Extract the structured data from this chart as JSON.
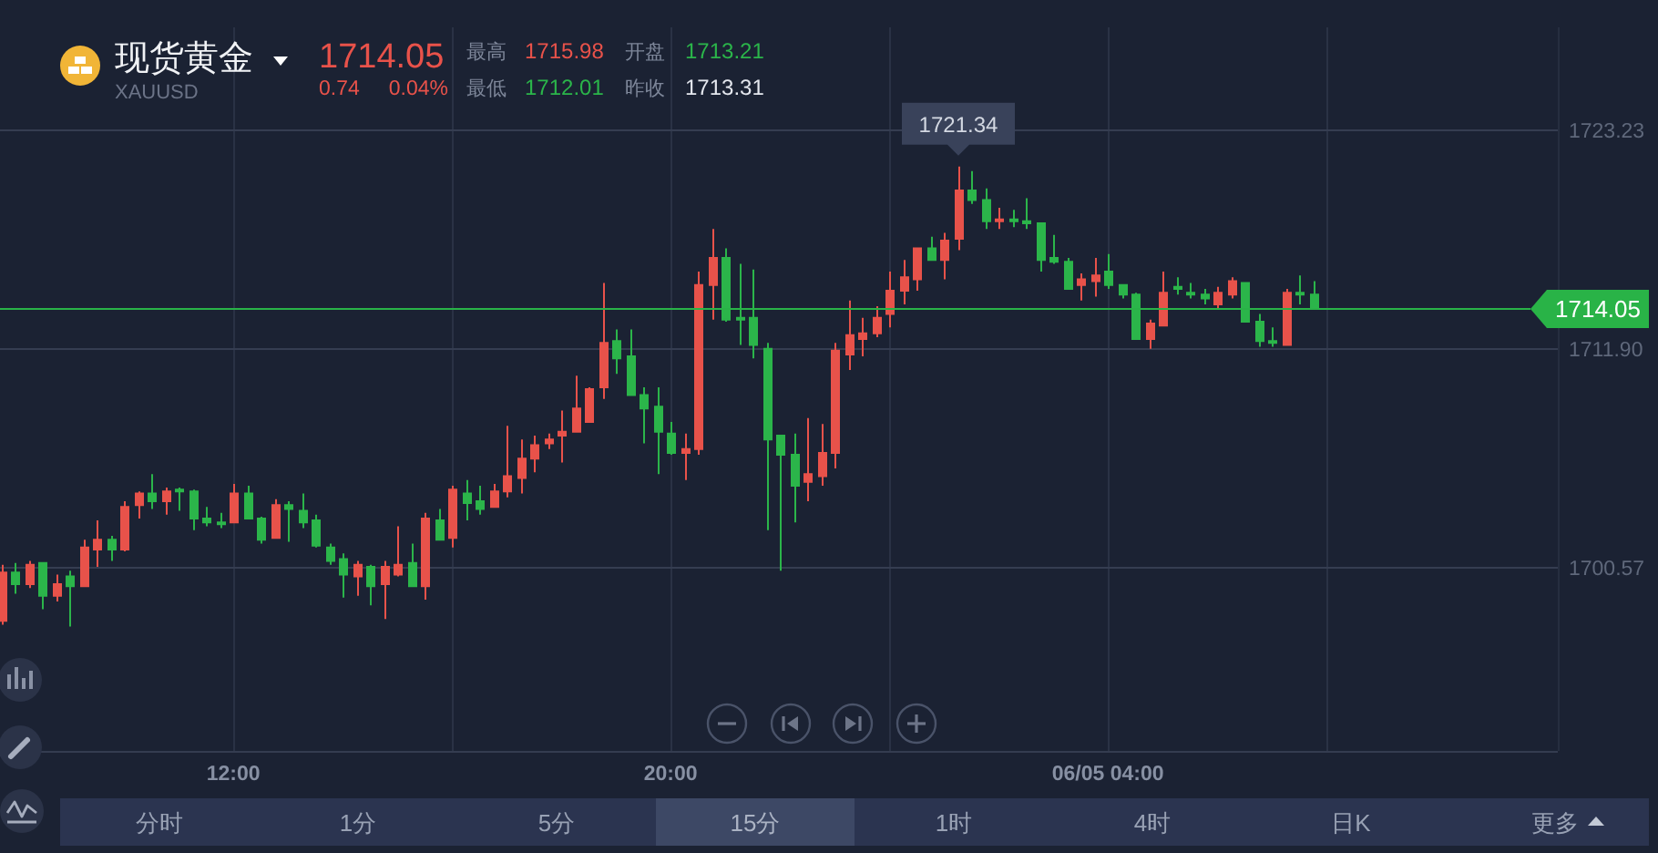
{
  "chart_data": {
    "type": "candlestick",
    "title": "现货黄金",
    "subtitle": "XAUUSD",
    "annotations": [
      "1714.05",
      "0.74",
      "0.04%",
      "最高",
      "1715.98",
      "开盘",
      "1713.21",
      "最低",
      "1712.01",
      "昨收",
      "1713.31",
      "分时",
      "1分",
      "5分",
      "15分",
      "1时",
      "4时",
      "日K",
      "更多",
      {
        "text": "1721.34",
        "x": 25.25,
        "y": 1721.34
      }
    ],
    "x": [
      7.75,
      8,
      8.25,
      8.5,
      8.75,
      9,
      9.25,
      9.5,
      9.75,
      10,
      10.25,
      10.5,
      10.75,
      11,
      11.25,
      11.5,
      11.75,
      12,
      12.25,
      12.5,
      12.75,
      13,
      13.25,
      13.5,
      13.75,
      14,
      14.25,
      14.5,
      14.75,
      15,
      15.25,
      15.5,
      15.75,
      16,
      16.25,
      16.5,
      16.75,
      17,
      17.25,
      17.5,
      17.75,
      18,
      18.25,
      18.5,
      18.75,
      19,
      19.25,
      19.5,
      19.75,
      20,
      20.25,
      20.5,
      20.75,
      21,
      21.25,
      21.5,
      21.75,
      22,
      22.25,
      22.5,
      22.75,
      23,
      23.25,
      23.5,
      23.75,
      24,
      24.25,
      24.5,
      24.75,
      25,
      25.25,
      25.5,
      25.75,
      26,
      26.25,
      26.5,
      26.75,
      27,
      27.25,
      27.5,
      27.75,
      28,
      28.25,
      28.5,
      28.75,
      29,
      29.25,
      29.5,
      29.75,
      30,
      30.25,
      30.5,
      30.75,
      31,
      31.25,
      31.5,
      31.75
    ],
    "ohlc": [
      [
        1697.8,
        1700.7,
        1697.6,
        1700.3
      ],
      [
        1700.3,
        1700.8,
        1699.2,
        1699.7
      ],
      [
        1699.7,
        1700.9,
        1699.5,
        1700.7
      ],
      [
        1700.8,
        1700.8,
        1698.4,
        1699.1
      ],
      [
        1699.1,
        1700.2,
        1698.8,
        1699.7
      ],
      [
        1700.1,
        1700.4,
        1697.5,
        1699.6
      ],
      [
        1699.6,
        1702.0,
        1699.6,
        1701.6
      ],
      [
        1701.5,
        1703.0,
        1700.6,
        1702.0
      ],
      [
        1702.0,
        1702.2,
        1700.9,
        1701.5
      ],
      [
        1701.5,
        1704.0,
        1701.4,
        1703.7
      ],
      [
        1703.8,
        1704.5,
        1703.1,
        1704.4
      ],
      [
        1704.4,
        1705.4,
        1703.6,
        1704.0
      ],
      [
        1704.0,
        1704.7,
        1703.3,
        1704.5
      ],
      [
        1704.6,
        1704.7,
        1703.5,
        1704.5
      ],
      [
        1704.5,
        1704.6,
        1702.5,
        1703.1
      ],
      [
        1703.1,
        1703.7,
        1702.7,
        1702.9
      ],
      [
        1702.9,
        1703.4,
        1702.6,
        1702.8
      ],
      [
        1702.9,
        1704.9,
        1702.9,
        1704.4
      ],
      [
        1704.4,
        1704.8,
        1703.1,
        1703.1
      ],
      [
        1703.1,
        1703.2,
        1701.8,
        1702.0
      ],
      [
        1702.1,
        1704.1,
        1702.1,
        1703.8
      ],
      [
        1703.8,
        1704.0,
        1701.9,
        1703.6
      ],
      [
        1703.5,
        1704.4,
        1702.6,
        1702.9
      ],
      [
        1703.0,
        1703.3,
        1701.6,
        1701.7
      ],
      [
        1701.6,
        1701.8,
        1700.7,
        1700.9
      ],
      [
        1701.0,
        1701.3,
        1699.0,
        1700.2
      ],
      [
        1700.1,
        1700.9,
        1699.1,
        1700.7
      ],
      [
        1700.6,
        1700.7,
        1698.6,
        1699.6
      ],
      [
        1699.7,
        1700.9,
        1697.9,
        1700.6
      ],
      [
        1700.2,
        1702.7,
        1700.1,
        1700.7
      ],
      [
        1700.8,
        1701.8,
        1699.6,
        1699.6
      ],
      [
        1699.6,
        1703.4,
        1698.9,
        1703.1
      ],
      [
        1703.0,
        1703.6,
        1702.0,
        1702.0
      ],
      [
        1702.1,
        1704.8,
        1701.6,
        1704.6
      ],
      [
        1704.4,
        1705.1,
        1703.0,
        1703.9
      ],
      [
        1704.0,
        1704.8,
        1703.3,
        1703.6
      ],
      [
        1703.7,
        1704.9,
        1703.7,
        1704.5
      ],
      [
        1704.5,
        1707.9,
        1704.2,
        1705.3
      ],
      [
        1705.2,
        1707.2,
        1704.4,
        1706.2
      ],
      [
        1706.2,
        1707.4,
        1705.5,
        1706.9
      ],
      [
        1707.0,
        1707.5,
        1706.7,
        1707.2
      ],
      [
        1707.4,
        1708.7,
        1706.0,
        1707.6
      ],
      [
        1707.6,
        1710.5,
        1707.6,
        1708.8
      ],
      [
        1708.1,
        1709.9,
        1708.1,
        1709.8
      ],
      [
        1709.9,
        1715.3,
        1709.3,
        1712.2
      ],
      [
        1712.3,
        1712.9,
        1710.6,
        1711.4
      ],
      [
        1711.5,
        1712.9,
        1709.5,
        1709.5
      ],
      [
        1709.5,
        1709.9,
        1707.0,
        1708.8
      ],
      [
        1708.9,
        1709.9,
        1705.4,
        1707.6
      ],
      [
        1707.5,
        1708.1,
        1706.4,
        1706.5
      ],
      [
        1706.5,
        1707.5,
        1705.1,
        1706.7
      ],
      [
        1706.7,
        1715.9,
        1706.4,
        1715.2
      ],
      [
        1715.2,
        1718.1,
        1713.4,
        1716.6
      ],
      [
        1716.6,
        1717.1,
        1713.3,
        1713.4
      ],
      [
        1713.5,
        1716.3,
        1712.1,
        1713.4
      ],
      [
        1713.5,
        1716.0,
        1711.4,
        1712.1
      ],
      [
        1711.9,
        1712.2,
        1702.5,
        1707.2
      ],
      [
        1707.4,
        1707.4,
        1700.4,
        1706.4
      ],
      [
        1706.4,
        1707.5,
        1702.9,
        1704.8
      ],
      [
        1705.0,
        1708.3,
        1704.0,
        1705.4
      ],
      [
        1705.3,
        1708.0,
        1704.8,
        1706.5
      ],
      [
        1706.5,
        1712.2,
        1705.7,
        1711.8
      ],
      [
        1711.6,
        1714.4,
        1710.8,
        1712.6
      ],
      [
        1712.4,
        1713.5,
        1711.5,
        1712.7
      ],
      [
        1712.7,
        1714.1,
        1712.5,
        1713.5
      ],
      [
        1713.7,
        1715.9,
        1713.0,
        1714.9
      ],
      [
        1714.9,
        1716.5,
        1714.2,
        1715.6
      ],
      [
        1715.5,
        1717.1,
        1714.9,
        1717.1
      ],
      [
        1717.1,
        1717.7,
        1716.5,
        1716.5
      ],
      [
        1716.5,
        1717.9,
        1715.5,
        1717.5
      ],
      [
        1717.6,
        1721.34,
        1717.0,
        1720.1
      ],
      [
        1720.1,
        1721.1,
        1719.4,
        1719.6
      ],
      [
        1719.6,
        1720.2,
        1718.1,
        1718.5
      ],
      [
        1718.5,
        1719.2,
        1718.1,
        1718.6
      ],
      [
        1718.6,
        1719.1,
        1718.2,
        1718.5
      ],
      [
        1718.5,
        1719.7,
        1718.1,
        1718.4
      ],
      [
        1718.4,
        1718.4,
        1715.9,
        1716.5
      ],
      [
        1716.6,
        1717.8,
        1716.3,
        1716.4
      ],
      [
        1716.4,
        1716.6,
        1715.0,
        1715.0
      ],
      [
        1715.2,
        1715.8,
        1714.4,
        1715.5
      ],
      [
        1715.4,
        1716.6,
        1714.6,
        1715.7
      ],
      [
        1715.9,
        1716.8,
        1715.0,
        1715.2
      ],
      [
        1715.2,
        1715.2,
        1714.5,
        1714.7
      ],
      [
        1714.7,
        1714.8,
        1712.4,
        1712.4
      ],
      [
        1712.4,
        1713.4,
        1711.9,
        1713.2
      ],
      [
        1713.1,
        1715.9,
        1713.1,
        1714.8
      ],
      [
        1715.1,
        1715.6,
        1714.7,
        1715.0
      ],
      [
        1714.8,
        1715.3,
        1714.5,
        1714.7
      ],
      [
        1714.7,
        1715.0,
        1714.2,
        1714.5
      ],
      [
        1714.2,
        1715.1,
        1714.0,
        1714.8
      ],
      [
        1714.7,
        1715.6,
        1714.5,
        1715.4
      ],
      [
        1715.3,
        1715.3,
        1713.3,
        1713.3
      ],
      [
        1713.3,
        1713.7,
        1712.0,
        1712.3
      ],
      [
        1712.3,
        1713.0,
        1712.0,
        1712.2
      ],
      [
        1712.1,
        1715.0,
        1712.1,
        1714.8
      ],
      [
        1714.8,
        1715.7,
        1714.2,
        1714.7
      ],
      [
        1714.7,
        1715.4,
        1714.0,
        1714.05
      ]
    ],
    "colors": [
      "#e8524a",
      "#2bb54a",
      "#e8524a",
      "#2bb54a",
      "#e8524a",
      "#2bb54a",
      "#e8524a",
      "#e8524a",
      "#2bb54a",
      "#e8524a",
      "#e8524a",
      "#2bb54a",
      "#e8524a",
      "#2bb54a",
      "#2bb54a",
      "#2bb54a",
      "#2bb54a",
      "#e8524a",
      "#2bb54a",
      "#2bb54a",
      "#e8524a",
      "#2bb54a",
      "#2bb54a",
      "#2bb54a",
      "#2bb54a",
      "#2bb54a",
      "#e8524a",
      "#2bb54a",
      "#e8524a",
      "#e8524a",
      "#2bb54a",
      "#e8524a",
      "#2bb54a",
      "#e8524a",
      "#2bb54a",
      "#2bb54a",
      "#e8524a",
      "#e8524a",
      "#e8524a",
      "#e8524a",
      "#e8524a",
      "#e8524a",
      "#e8524a",
      "#e8524a",
      "#e8524a",
      "#2bb54a",
      "#2bb54a",
      "#2bb54a",
      "#2bb54a",
      "#2bb54a",
      "#e8524a",
      "#e8524a",
      "#e8524a",
      "#2bb54a",
      "#2bb54a",
      "#2bb54a",
      "#2bb54a",
      "#2bb54a",
      "#2bb54a",
      "#e8524a",
      "#e8524a",
      "#e8524a",
      "#e8524a",
      "#e8524a",
      "#e8524a",
      "#e8524a",
      "#e8524a",
      "#e8524a",
      "#2bb54a",
      "#e8524a",
      "#e8524a",
      "#2bb54a",
      "#2bb54a",
      "#e8524a",
      "#2bb54a",
      "#2bb54a",
      "#2bb54a",
      "#2bb54a",
      "#2bb54a",
      "#e8524a",
      "#e8524a",
      "#2bb54a",
      "#2bb54a",
      "#2bb54a",
      "#e8524a",
      "#e8524a",
      "#2bb54a",
      "#2bb54a",
      "#2bb54a",
      "#e8524a",
      "#e8524a",
      "#2bb54a",
      "#2bb54a",
      "#2bb54a",
      "#e8524a",
      "#2bb54a",
      "#2bb54a"
    ],
    "xlim": [
      7.73,
      36.23
    ],
    "ylim": [
      1691.06,
      1728.55
    ],
    "xticks": [
      {
        "value": 12,
        "label": "12:00"
      },
      {
        "value": 16,
        "label": null
      },
      {
        "value": 20,
        "label": "20:00"
      },
      {
        "value": 24,
        "label": null
      },
      {
        "value": 28,
        "label": "06/05 04:00"
      },
      {
        "value": 32,
        "label": null
      }
    ],
    "yticks": [
      1700.57,
      {
        "value": 1711.9,
        "label": "1711.90"
      },
      1723.23
    ],
    "grid": true,
    "ref_lines": [
      {
        "axis": "y",
        "value": 1714.05,
        "label": "1714.05",
        "color": "#29b347"
      }
    ]
  }
}
